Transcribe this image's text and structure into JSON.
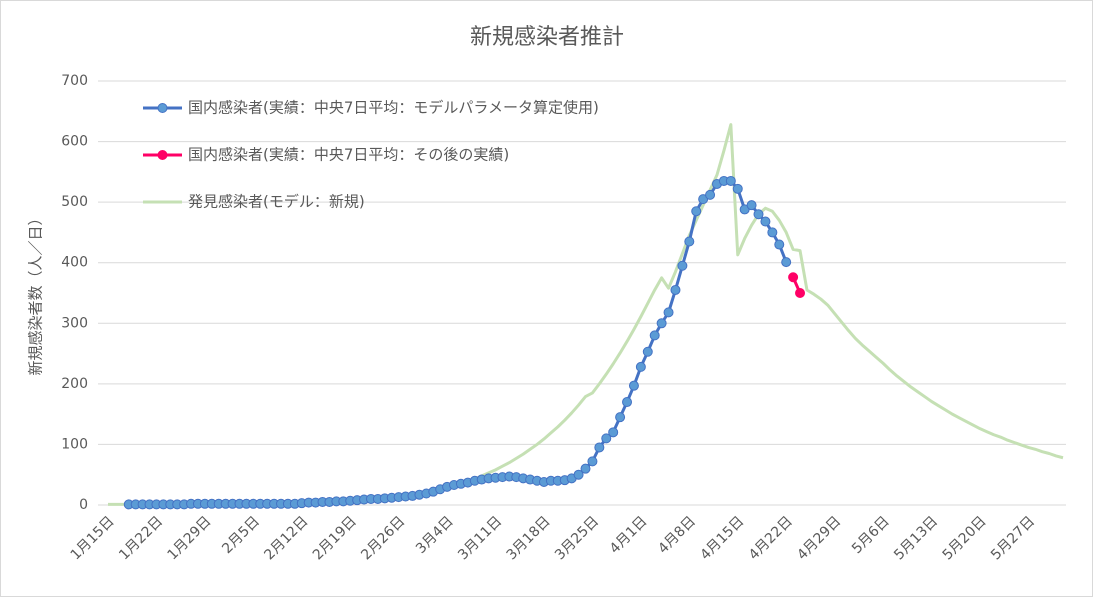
{
  "chart_data": {
    "type": "line",
    "title": "新規感染者推計",
    "y_label": "新規感染者数（人／日）",
    "categories": [
      "1月15日",
      null,
      null,
      null,
      null,
      null,
      null,
      "1月22日",
      null,
      null,
      null,
      null,
      null,
      null,
      "1月29日",
      null,
      null,
      null,
      null,
      null,
      null,
      "2月5日",
      null,
      null,
      null,
      null,
      null,
      null,
      "2月12日",
      null,
      null,
      null,
      null,
      null,
      null,
      "2月19日",
      null,
      null,
      null,
      null,
      null,
      null,
      "2月26日",
      null,
      null,
      null,
      null,
      null,
      null,
      "3月4日",
      null,
      null,
      null,
      null,
      null,
      null,
      "3月11日",
      null,
      null,
      null,
      null,
      null,
      null,
      "3月18日",
      null,
      null,
      null,
      null,
      null,
      null,
      "3月25日",
      null,
      null,
      null,
      null,
      null,
      null,
      "4月1日",
      null,
      null,
      null,
      null,
      null,
      null,
      "4月8日",
      null,
      null,
      null,
      null,
      null,
      null,
      "4月15日",
      null,
      null,
      null,
      null,
      null,
      null,
      "4月22日",
      null,
      null,
      null,
      null,
      null,
      null,
      "4月29日",
      null,
      null,
      null,
      null,
      null,
      null,
      "5月6日",
      null,
      null,
      null,
      null,
      null,
      null,
      "5月13日",
      null,
      null,
      null,
      null,
      null,
      null,
      "5月20日",
      null,
      null,
      null,
      null,
      null,
      null,
      "5月27日",
      null,
      null,
      null,
      null,
      null
    ],
    "series": [
      {
        "name": "発見感染者(モデル：新規)",
        "color": "#c5e0b4",
        "width": 3,
        "markers": false,
        "values": [
          1,
          1,
          1,
          1,
          1,
          1,
          1,
          2,
          2,
          2,
          2,
          2,
          2,
          2,
          2,
          2,
          3,
          3,
          3,
          3,
          3,
          3,
          3,
          4,
          4,
          4,
          4,
          5,
          5,
          5,
          6,
          6,
          7,
          7,
          8,
          8,
          9,
          9,
          10,
          10,
          11,
          12,
          13,
          14,
          16,
          18,
          20,
          22,
          25,
          28,
          31,
          35,
          39,
          43,
          48,
          53,
          58,
          64,
          70,
          77,
          84,
          92,
          100,
          109,
          119,
          129,
          140,
          152,
          165,
          179,
          185,
          200,
          216,
          233,
          251,
          270,
          290,
          311,
          333,
          355,
          375,
          358,
          385,
          415,
          445,
          470,
          495,
          520,
          545,
          585,
          628,
          413,
          440,
          462,
          480,
          490,
          485,
          470,
          450,
          422,
          420,
          355,
          348,
          340,
          330,
          316,
          302,
          288,
          275,
          264,
          254,
          244,
          234,
          223,
          213,
          204,
          195,
          187,
          179,
          171,
          164,
          157,
          150,
          144,
          138,
          132,
          126,
          121,
          116,
          112,
          107,
          103,
          99,
          95,
          92,
          88,
          85,
          81,
          78
        ]
      },
      {
        "name": "国内感染者(実績：中央7日平均：モデルパラメータ算定使用)",
        "color": "#4472c4",
        "marker_color": "#5b9bd5",
        "width": 3,
        "markers": true,
        "values": [
          null,
          null,
          null,
          1,
          1,
          1,
          1,
          1,
          1,
          1,
          1,
          1,
          2,
          2,
          2,
          2,
          2,
          2,
          2,
          2,
          2,
          2,
          2,
          2,
          2,
          2,
          2,
          2,
          3,
          4,
          4,
          5,
          5,
          6,
          6,
          7,
          8,
          9,
          10,
          10,
          11,
          12,
          13,
          14,
          15,
          17,
          19,
          22,
          26,
          30,
          33,
          35,
          37,
          40,
          42,
          44,
          45,
          46,
          47,
          46,
          44,
          42,
          40,
          38,
          40,
          40,
          41,
          44,
          50,
          60,
          72,
          95,
          110,
          120,
          145,
          170,
          197,
          228,
          253,
          280,
          300,
          318,
          355,
          395,
          435,
          485,
          505,
          512,
          530,
          535,
          535,
          522,
          488,
          495,
          480,
          468,
          450,
          430,
          401,
          null,
          null,
          null,
          null,
          null,
          null,
          null,
          null,
          null,
          null,
          null,
          null,
          null,
          null,
          null,
          null,
          null,
          null,
          null,
          null,
          null,
          null,
          null,
          null,
          null,
          null,
          null,
          null,
          null,
          null,
          null,
          null,
          null,
          null,
          null,
          null,
          null,
          null,
          null,
          null
        ]
      },
      {
        "name": "国内感染者(実績：中央7日平均：その後の実績)",
        "color": "#ff0066",
        "marker_color": "#ff0066",
        "width": 3,
        "markers": true,
        "values": [
          null,
          null,
          null,
          null,
          null,
          null,
          null,
          null,
          null,
          null,
          null,
          null,
          null,
          null,
          null,
          null,
          null,
          null,
          null,
          null,
          null,
          null,
          null,
          null,
          null,
          null,
          null,
          null,
          null,
          null,
          null,
          null,
          null,
          null,
          null,
          null,
          null,
          null,
          null,
          null,
          null,
          null,
          null,
          null,
          null,
          null,
          null,
          null,
          null,
          null,
          null,
          null,
          null,
          null,
          null,
          null,
          null,
          null,
          null,
          null,
          null,
          null,
          null,
          null,
          null,
          null,
          null,
          null,
          null,
          null,
          null,
          null,
          null,
          null,
          null,
          null,
          null,
          null,
          null,
          null,
          null,
          null,
          null,
          null,
          null,
          null,
          null,
          null,
          null,
          null,
          null,
          null,
          null,
          null,
          null,
          null,
          null,
          null,
          null,
          376,
          350,
          null,
          null,
          null,
          null,
          null,
          null,
          null,
          null,
          null,
          null,
          null,
          null,
          null,
          null,
          null,
          null,
          null,
          null,
          null,
          null,
          null,
          null,
          null,
          null,
          null,
          null,
          null,
          null,
          null,
          null,
          null,
          null,
          null,
          null,
          null,
          null,
          null,
          null
        ]
      }
    ],
    "legend_order": [
      1,
      2,
      0
    ],
    "legend": "upper left",
    "ylim": [
      0,
      700
    ],
    "yticks": [
      0,
      100,
      200,
      300,
      400,
      500,
      600,
      700
    ],
    "grid": true
  }
}
